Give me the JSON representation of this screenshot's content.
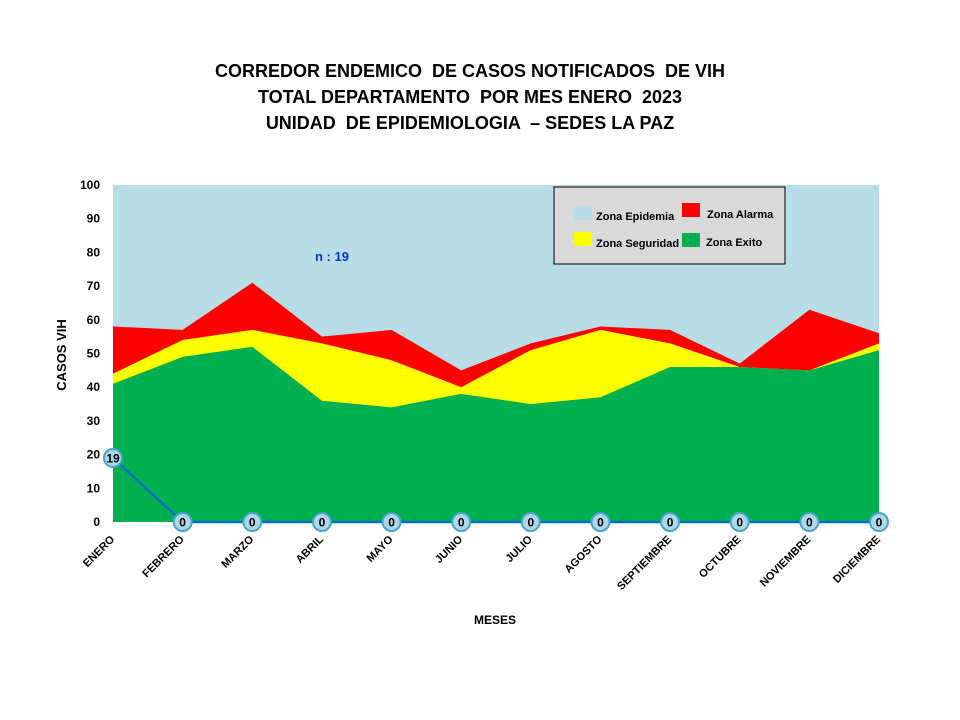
{
  "title_lines": [
    "CORREDOR ENDEMICO  DE CASOS NOTIFICADOS  DE VIH",
    "TOTAL DEPARTAMENTO  POR MES ENERO  2023",
    "UNIDAD  DE EPIDEMIOLOGIA  – SEDES LA PAZ"
  ],
  "colors": {
    "epidemia": "#b9dde7",
    "alarma": "#ff0000",
    "seguridad": "#ffff00",
    "exito": "#00b050",
    "casos_line": "#0070c0",
    "marker_fill": "#add8e6",
    "n_text": "#0033cc"
  },
  "chart_data": {
    "type": "area",
    "categories": [
      "ENERO",
      "FEBRERO",
      "MARZO",
      "ABRIL",
      "MAYO",
      "JUNIO",
      "JULIO",
      "AGOSTO",
      "SEPTIEMBRE",
      "OCTUBRE",
      "NOVIEMBRE",
      "DICIEMBRE"
    ],
    "xlabel": "MESES",
    "ylabel": "CASOS VIH",
    "ylim": [
      0,
      100
    ],
    "yticks": [
      0,
      10,
      20,
      30,
      40,
      50,
      60,
      70,
      80,
      90,
      100
    ],
    "annotation": "n : 19",
    "legend_placement": "top-right",
    "series": [
      {
        "name": "Zona Epidemia",
        "key": "epidemia",
        "values": [
          100,
          100,
          100,
          100,
          100,
          100,
          100,
          100,
          100,
          100,
          100,
          100
        ]
      },
      {
        "name": "Zona Alarma",
        "key": "alarma",
        "values": [
          58,
          57,
          71,
          55,
          57,
          45,
          53,
          58,
          57,
          47,
          63,
          56
        ]
      },
      {
        "name": "Zona Seguridad",
        "key": "seguridad",
        "values": [
          44,
          54,
          57,
          53,
          48,
          40,
          51,
          57,
          53,
          46,
          45,
          53
        ]
      },
      {
        "name": "Zona Exito",
        "key": "exito",
        "values": [
          41,
          49,
          52,
          36,
          34,
          38,
          35,
          37,
          46,
          46,
          45,
          51
        ]
      }
    ],
    "cases": {
      "values": [
        19,
        0,
        0,
        0,
        0,
        0,
        0,
        0,
        0,
        0,
        0,
        0
      ],
      "labels": [
        "19",
        "0",
        "0",
        "0",
        "0",
        "0",
        "0",
        "0",
        "0",
        "0",
        "0",
        "0"
      ]
    }
  }
}
